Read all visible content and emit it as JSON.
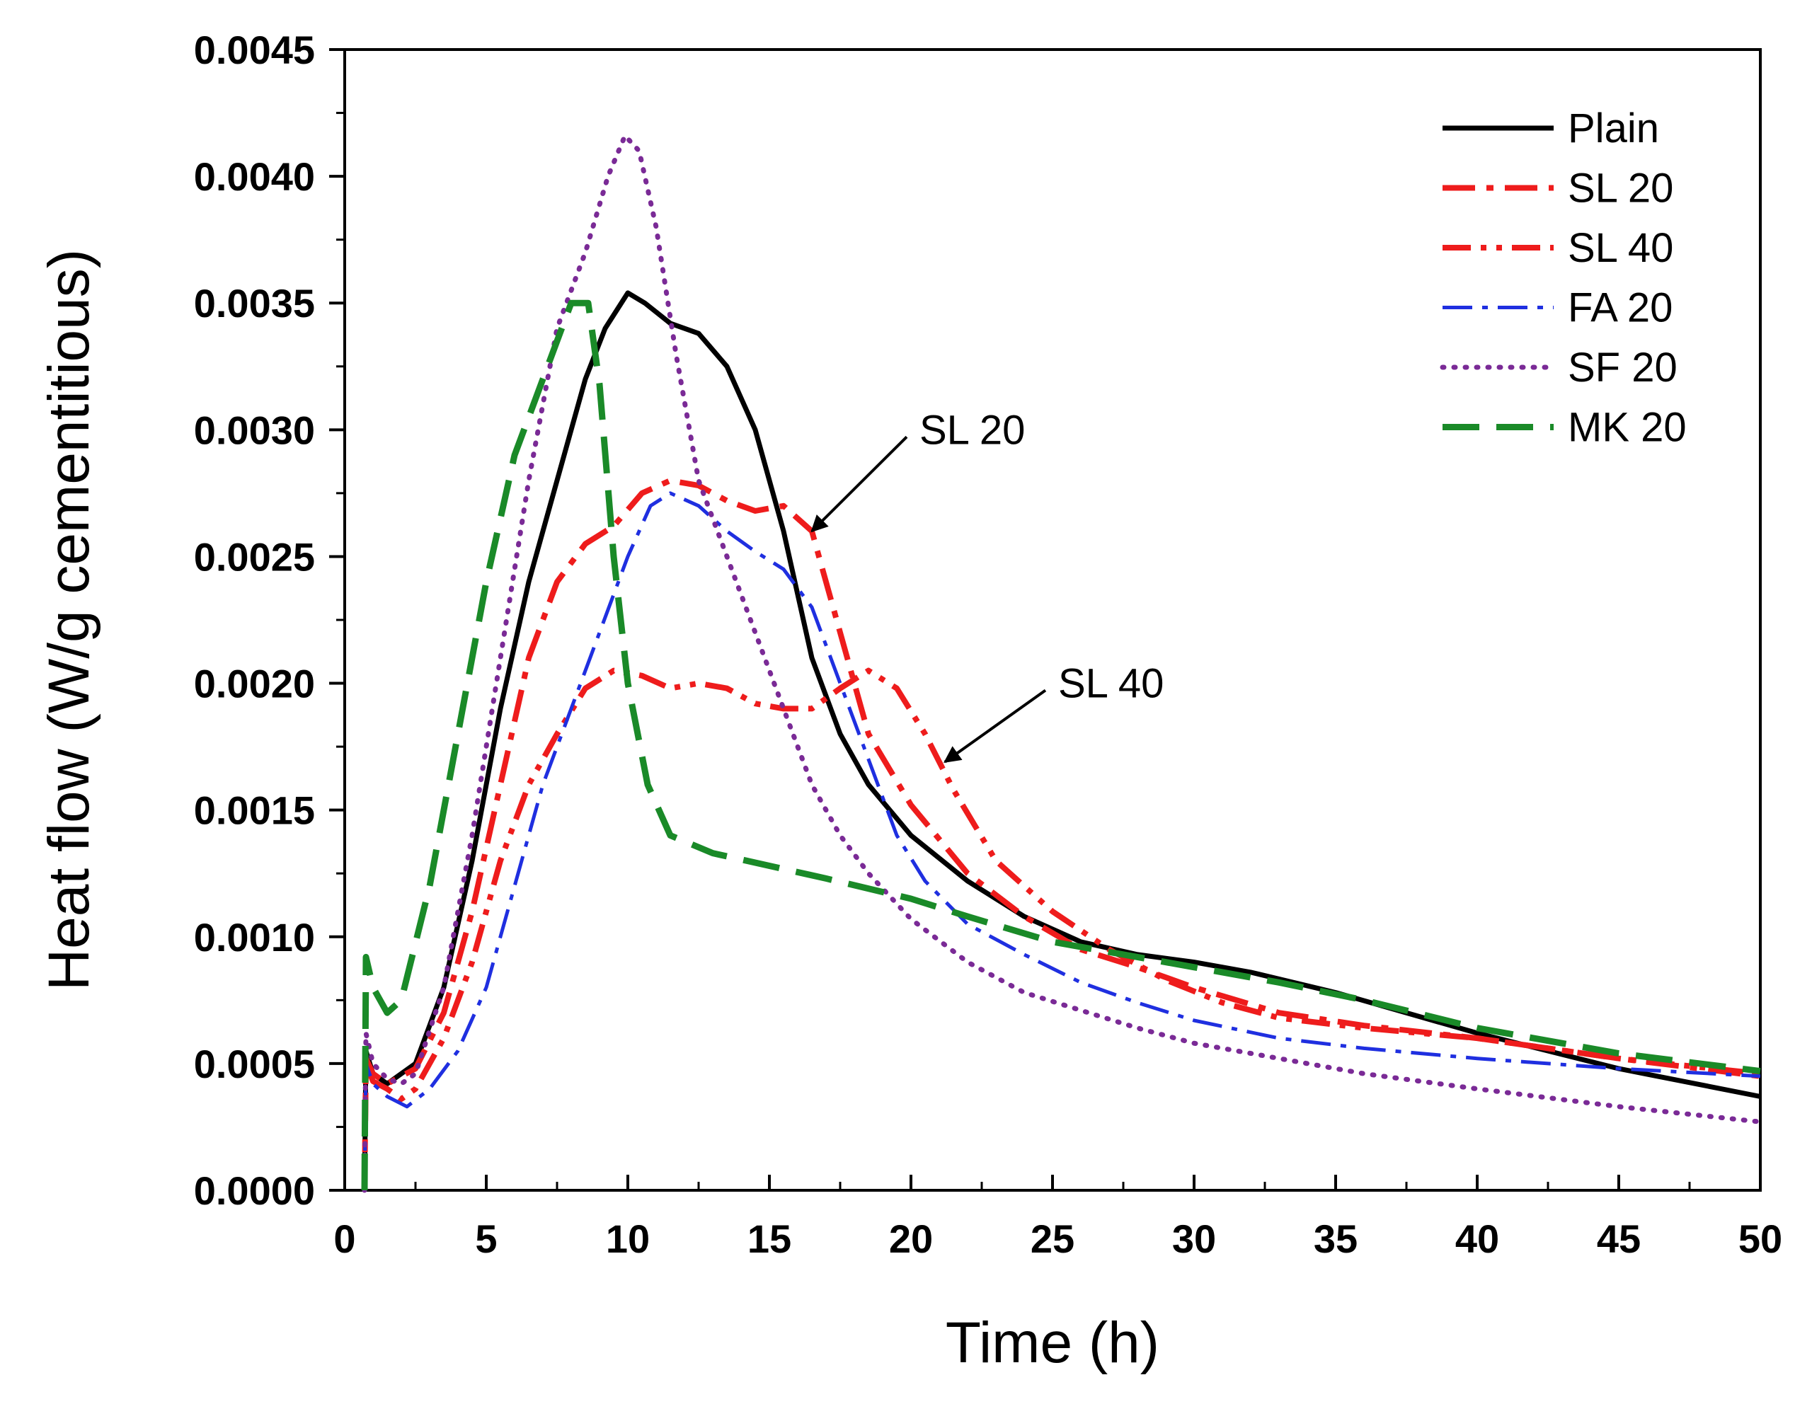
{
  "chart_data": {
    "type": "line",
    "title": "",
    "xlabel": "Time (h)",
    "ylabel": "Heat flow (W/g cementitious)",
    "xlim": [
      0,
      50
    ],
    "ylim": [
      0,
      0.0045
    ],
    "xticks": [
      0,
      5,
      10,
      15,
      20,
      25,
      30,
      35,
      40,
      45,
      50
    ],
    "yticks": [
      0.0,
      0.0005,
      0.001,
      0.0015,
      0.002,
      0.0025,
      0.003,
      0.0035,
      0.004,
      0.0045
    ],
    "xtick_labels": [
      "0",
      "5",
      "10",
      "15",
      "20",
      "25",
      "30",
      "35",
      "40",
      "45",
      "50"
    ],
    "ytick_labels": [
      "0.0000",
      "0.0005",
      "0.0010",
      "0.0015",
      "0.0020",
      "0.0025",
      "0.0030",
      "0.0035",
      "0.0040",
      "0.0045"
    ],
    "grid": false,
    "legend_position": "top-right",
    "series": [
      {
        "name": "Plain",
        "color": "#000000",
        "style": "solid",
        "points": [
          [
            0.7,
            0.0
          ],
          [
            0.75,
            0.00055
          ],
          [
            1.0,
            0.00046
          ],
          [
            1.5,
            0.00042
          ],
          [
            2.5,
            0.0005
          ],
          [
            3.5,
            0.0008
          ],
          [
            4.5,
            0.0013
          ],
          [
            5.5,
            0.0019
          ],
          [
            6.5,
            0.0024
          ],
          [
            7.5,
            0.0028
          ],
          [
            8.5,
            0.0032
          ],
          [
            9.2,
            0.0034
          ],
          [
            10.0,
            0.00354
          ],
          [
            10.6,
            0.0035
          ],
          [
            11.5,
            0.00342
          ],
          [
            12.5,
            0.00338
          ],
          [
            13.5,
            0.00325
          ],
          [
            14.5,
            0.003
          ],
          [
            15.5,
            0.0026
          ],
          [
            16.5,
            0.0021
          ],
          [
            17.5,
            0.0018
          ],
          [
            18.5,
            0.0016
          ],
          [
            20.0,
            0.0014
          ],
          [
            22.0,
            0.00122
          ],
          [
            24.0,
            0.00108
          ],
          [
            26.0,
            0.00098
          ],
          [
            28.0,
            0.00093
          ],
          [
            30.0,
            0.0009
          ],
          [
            32.0,
            0.00086
          ],
          [
            35.0,
            0.00078
          ],
          [
            40.0,
            0.00062
          ],
          [
            45.0,
            0.00048
          ],
          [
            50.0,
            0.00037
          ]
        ]
      },
      {
        "name": "SL 20",
        "color": "#ee1c1c",
        "style": "dash-dot",
        "points": [
          [
            0.7,
            0.0
          ],
          [
            0.75,
            0.00052
          ],
          [
            1.0,
            0.00046
          ],
          [
            1.5,
            0.00042
          ],
          [
            2.5,
            0.00048
          ],
          [
            3.5,
            0.0007
          ],
          [
            4.5,
            0.0011
          ],
          [
            5.5,
            0.0016
          ],
          [
            6.5,
            0.0021
          ],
          [
            7.5,
            0.0024
          ],
          [
            8.5,
            0.00255
          ],
          [
            9.5,
            0.00262
          ],
          [
            10.5,
            0.00275
          ],
          [
            11.5,
            0.0028
          ],
          [
            12.5,
            0.00278
          ],
          [
            13.5,
            0.00272
          ],
          [
            14.5,
            0.00268
          ],
          [
            15.5,
            0.0027
          ],
          [
            16.5,
            0.0026
          ],
          [
            17.5,
            0.0022
          ],
          [
            18.5,
            0.0018
          ],
          [
            20.0,
            0.00152
          ],
          [
            22.0,
            0.00125
          ],
          [
            24.0,
            0.00108
          ],
          [
            26.0,
            0.00095
          ],
          [
            28.0,
            0.00088
          ],
          [
            30.0,
            0.0008
          ],
          [
            33.0,
            0.0007
          ],
          [
            36.0,
            0.00065
          ],
          [
            40.0,
            0.0006
          ],
          [
            45.0,
            0.00052
          ],
          [
            50.0,
            0.00045
          ]
        ]
      },
      {
        "name": "SL 40",
        "color": "#ee1c1c",
        "style": "dash-dot-dot",
        "points": [
          [
            0.7,
            0.0
          ],
          [
            0.75,
            0.0005
          ],
          [
            1.0,
            0.00043
          ],
          [
            1.5,
            0.0004
          ],
          [
            2.0,
            0.00036
          ],
          [
            2.5,
            0.0004
          ],
          [
            3.5,
            0.0006
          ],
          [
            4.5,
            0.0009
          ],
          [
            5.5,
            0.0013
          ],
          [
            6.5,
            0.0016
          ],
          [
            7.5,
            0.0018
          ],
          [
            8.5,
            0.00198
          ],
          [
            9.5,
            0.00205
          ],
          [
            10.5,
            0.00203
          ],
          [
            11.5,
            0.00198
          ],
          [
            12.5,
            0.002
          ],
          [
            13.5,
            0.00198
          ],
          [
            14.5,
            0.00192
          ],
          [
            15.5,
            0.0019
          ],
          [
            16.5,
            0.0019
          ],
          [
            17.5,
            0.00198
          ],
          [
            18.5,
            0.00205
          ],
          [
            19.5,
            0.00198
          ],
          [
            20.5,
            0.0018
          ],
          [
            21.5,
            0.00158
          ],
          [
            23.0,
            0.0013
          ],
          [
            25.0,
            0.0011
          ],
          [
            27.0,
            0.00095
          ],
          [
            29.0,
            0.00083
          ],
          [
            31.0,
            0.00074
          ],
          [
            33.0,
            0.00068
          ],
          [
            36.0,
            0.00064
          ],
          [
            40.0,
            0.0006
          ],
          [
            45.0,
            0.00052
          ],
          [
            50.0,
            0.00046
          ]
        ]
      },
      {
        "name": "FA 20",
        "color": "#1f2fe0",
        "style": "dash-dot",
        "points": [
          [
            0.7,
            0.0
          ],
          [
            0.75,
            0.0005
          ],
          [
            1.0,
            0.00042
          ],
          [
            1.5,
            0.00037
          ],
          [
            2.2,
            0.00033
          ],
          [
            3.0,
            0.0004
          ],
          [
            4.0,
            0.00055
          ],
          [
            5.0,
            0.0008
          ],
          [
            6.0,
            0.0012
          ],
          [
            7.0,
            0.0016
          ],
          [
            8.0,
            0.0019
          ],
          [
            9.0,
            0.0022
          ],
          [
            10.0,
            0.0025
          ],
          [
            10.8,
            0.0027
          ],
          [
            11.5,
            0.00275
          ],
          [
            12.5,
            0.0027
          ],
          [
            13.5,
            0.0026
          ],
          [
            14.5,
            0.00252
          ],
          [
            15.5,
            0.00245
          ],
          [
            16.5,
            0.0023
          ],
          [
            17.5,
            0.002
          ],
          [
            18.5,
            0.0017
          ],
          [
            19.5,
            0.0014
          ],
          [
            20.5,
            0.00122
          ],
          [
            22.0,
            0.00105
          ],
          [
            24.0,
            0.00093
          ],
          [
            26.0,
            0.00082
          ],
          [
            28.0,
            0.00074
          ],
          [
            30.0,
            0.00067
          ],
          [
            33.0,
            0.0006
          ],
          [
            36.0,
            0.00056
          ],
          [
            40.0,
            0.00052
          ],
          [
            45.0,
            0.00048
          ],
          [
            50.0,
            0.00045
          ]
        ]
      },
      {
        "name": "SF 20",
        "color": "#7a2a96",
        "style": "dotted",
        "points": [
          [
            0.7,
            0.0
          ],
          [
            0.75,
            0.00062
          ],
          [
            1.0,
            0.0005
          ],
          [
            1.5,
            0.00044
          ],
          [
            2.0,
            0.00042
          ],
          [
            2.5,
            0.00046
          ],
          [
            3.5,
            0.0008
          ],
          [
            4.5,
            0.0014
          ],
          [
            5.5,
            0.0021
          ],
          [
            6.5,
            0.0028
          ],
          [
            7.5,
            0.0034
          ],
          [
            8.5,
            0.0037
          ],
          [
            9.3,
            0.004
          ],
          [
            9.9,
            0.00416
          ],
          [
            10.4,
            0.0041
          ],
          [
            11.0,
            0.0038
          ],
          [
            11.7,
            0.0033
          ],
          [
            12.5,
            0.0028
          ],
          [
            13.5,
            0.0025
          ],
          [
            14.5,
            0.0022
          ],
          [
            15.5,
            0.0019
          ],
          [
            16.5,
            0.0016
          ],
          [
            17.5,
            0.0014
          ],
          [
            18.5,
            0.00125
          ],
          [
            20.0,
            0.00107
          ],
          [
            22.0,
            0.0009
          ],
          [
            24.0,
            0.00078
          ],
          [
            26.0,
            0.00071
          ],
          [
            28.0,
            0.00064
          ],
          [
            30.0,
            0.00058
          ],
          [
            33.0,
            0.00052
          ],
          [
            36.0,
            0.00046
          ],
          [
            40.0,
            0.0004
          ],
          [
            45.0,
            0.00033
          ],
          [
            50.0,
            0.00027
          ]
        ]
      },
      {
        "name": "MK 20",
        "color": "#1a8a28",
        "style": "dashed",
        "points": [
          [
            0.7,
            0.0
          ],
          [
            0.75,
            0.00092
          ],
          [
            1.0,
            0.0008
          ],
          [
            1.5,
            0.0007
          ],
          [
            2.0,
            0.00075
          ],
          [
            3.0,
            0.0012
          ],
          [
            4.0,
            0.0018
          ],
          [
            5.0,
            0.0024
          ],
          [
            6.0,
            0.0029
          ],
          [
            7.0,
            0.0032
          ],
          [
            8.0,
            0.0035
          ],
          [
            8.6,
            0.0035
          ],
          [
            9.0,
            0.00318
          ],
          [
            9.5,
            0.0025
          ],
          [
            10.0,
            0.002
          ],
          [
            10.7,
            0.0016
          ],
          [
            11.5,
            0.0014
          ],
          [
            13.0,
            0.00133
          ],
          [
            15.0,
            0.00128
          ],
          [
            17.0,
            0.00123
          ],
          [
            20.0,
            0.00115
          ],
          [
            22.0,
            0.00108
          ],
          [
            25.0,
            0.00098
          ],
          [
            28.0,
            0.00092
          ],
          [
            30.0,
            0.00088
          ],
          [
            33.0,
            0.00082
          ],
          [
            36.0,
            0.00075
          ],
          [
            40.0,
            0.00064
          ],
          [
            45.0,
            0.00054
          ],
          [
            50.0,
            0.00047
          ]
        ]
      }
    ],
    "annotations": [
      {
        "text": "SL 20",
        "x": 20.3,
        "y": 0.003,
        "arrow_to": [
          16.5,
          0.0026
        ]
      },
      {
        "text": "SL 40",
        "x": 25.2,
        "y": 0.002,
        "arrow_to": [
          21.2,
          0.00169
        ]
      }
    ]
  }
}
